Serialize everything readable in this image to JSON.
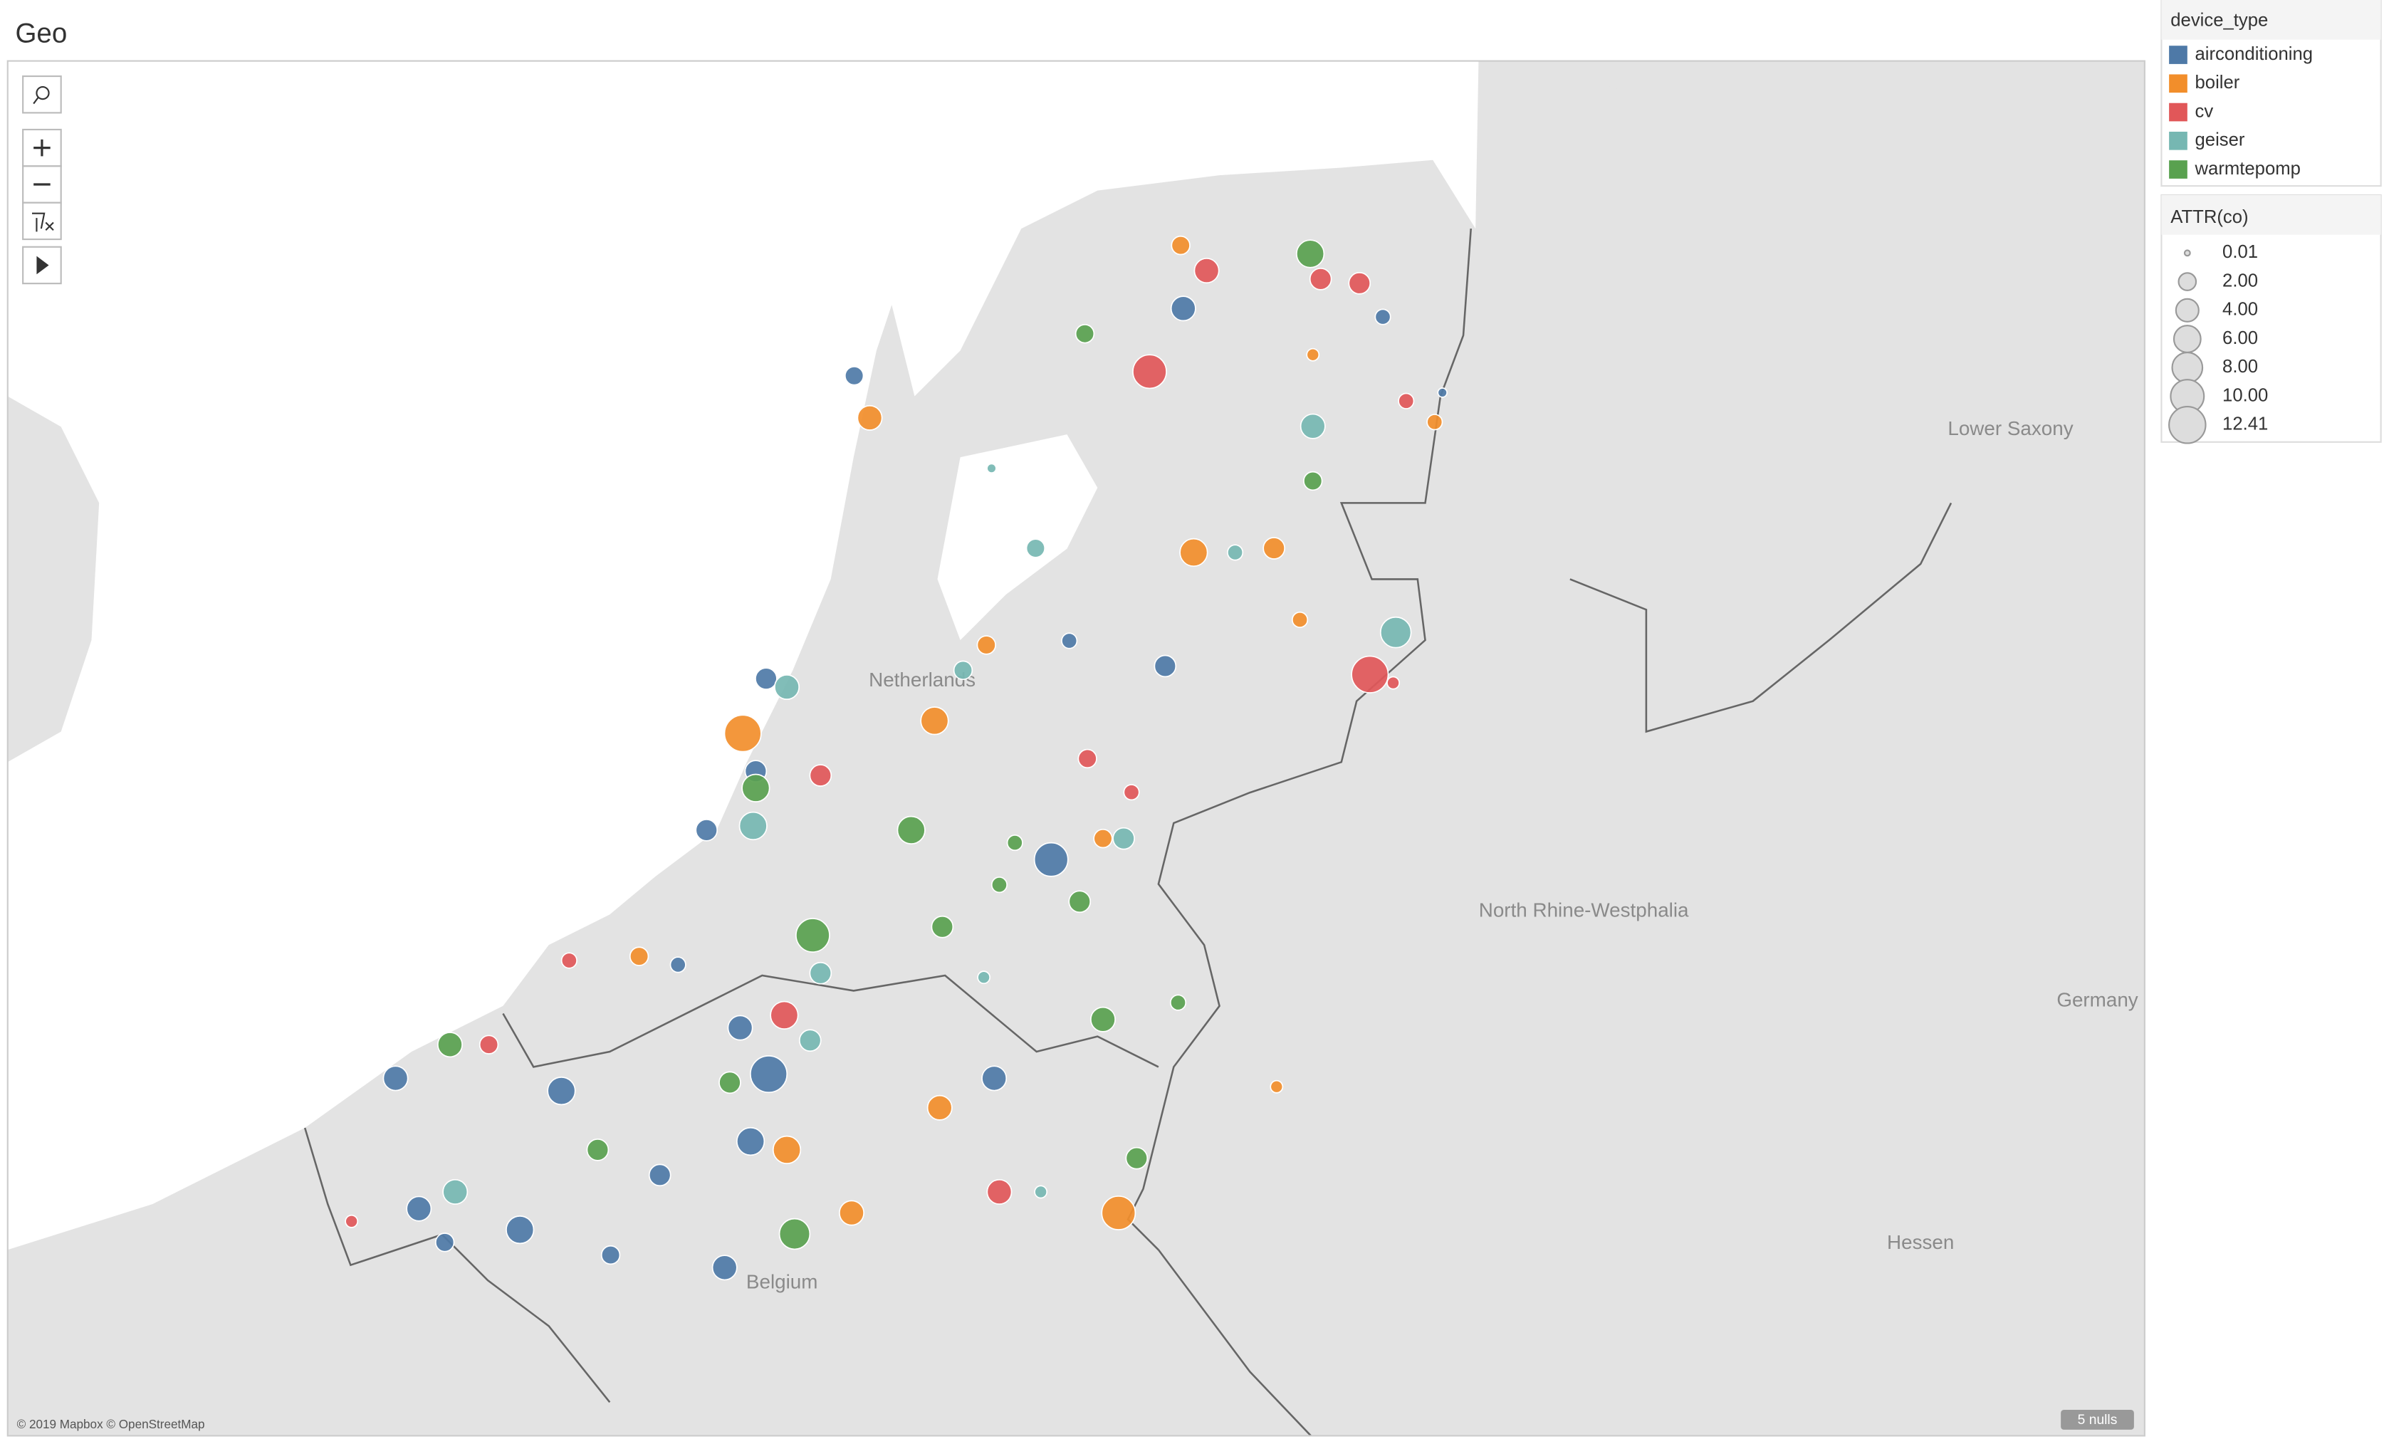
{
  "chart_data": {
    "type": "bubble_map",
    "title": "Geo",
    "color_legend_title": "device_type",
    "size_legend_title": "ATTR(co)",
    "size_ticks": [
      0.01,
      {
        "value": 2,
        "label": "2.00"
      },
      {
        "value": 4,
        "label": "4.00"
      },
      {
        "value": 6,
        "label": "6.00"
      },
      {
        "value": 8,
        "label": "8.00"
      },
      {
        "value": 10,
        "label": "10.00"
      },
      12.41
    ],
    "place_labels": [
      "Lower Saxony",
      "Netherlands",
      "North Rhine-Westphalia",
      "Belgium",
      "Hessen",
      "Germany"
    ],
    "attribution": "© 2019 Mapbox © OpenStreetMap",
    "nulls_label": "5 nulls",
    "series": [
      {
        "name": "airconditioning",
        "color": "#4e79a7",
        "lon": [
          5.94,
          6.71,
          4.67,
          6.94,
          5.5,
          5.87,
          4.33,
          4.29,
          4.1,
          5.43,
          4.23,
          4.34,
          4.27,
          3.54,
          2.9,
          3.92,
          2.99,
          3.38,
          3.09,
          3.73,
          4.17,
          5.21,
          3.99
        ],
        "lat": [
          53.06,
          53.04,
          52.9,
          52.86,
          52.27,
          52.21,
          52.18,
          51.96,
          51.82,
          51.75,
          51.35,
          51.24,
          51.08,
          51.2,
          51.23,
          51.0,
          50.92,
          50.87,
          50.84,
          50.81,
          50.78,
          51.23,
          51.5
        ],
        "size": [
          4.76,
          1.38,
          2.28,
          0.25,
          1.38,
          3.4,
          3.4,
          3.4,
          3.4,
          10.16,
          4.76,
          12.41,
          6.33,
          6.33,
          4.76,
          3.4,
          4.76,
          6.33,
          2.28,
          2.28,
          4.76,
          4.76,
          1.38
        ]
      },
      {
        "name": "boiler",
        "color": "#f28e2b",
        "lon": [
          5.93,
          6.44,
          4.73,
          6.91,
          5.98,
          6.29,
          6.39,
          5.18,
          4.98,
          4.24,
          5.63,
          4.41,
          4.66,
          5.0,
          5.69,
          6.3,
          3.84
        ],
        "lat": [
          53.21,
          52.95,
          52.8,
          52.79,
          52.48,
          52.49,
          52.32,
          52.26,
          52.08,
          52.05,
          51.8,
          51.06,
          50.91,
          51.16,
          50.91,
          51.21,
          51.52
        ],
        "size": [
          2.28,
          0.7,
          4.76,
          1.38,
          6.33,
          3.4,
          1.38,
          2.28,
          6.33,
          12.41,
          2.28,
          6.33,
          4.76,
          4.76,
          10.16,
          0.7,
          2.28
        ]
      },
      {
        "name": "cv",
        "color": "#e15759",
        "lon": [
          6.03,
          6.47,
          6.62,
          5.81,
          6.8,
          6.66,
          6.75,
          4.54,
          5.57,
          5.74,
          4.4,
          3.26,
          2.73,
          5.23,
          3.57
        ],
        "lat": [
          53.15,
          53.13,
          53.12,
          52.91,
          52.84,
          52.19,
          52.17,
          51.95,
          51.99,
          51.91,
          51.38,
          51.31,
          50.89,
          50.96,
          51.51
        ],
        "size": [
          4.76,
          3.4,
          3.4,
          10.16,
          1.38,
          12.41,
          0.7,
          3.4,
          2.28,
          1.38,
          6.33,
          2.28,
          0.7,
          4.76,
          1.38
        ]
      },
      {
        "name": "geiser",
        "color": "#76b7b2",
        "lon": [
          6.44,
          5.2,
          5.37,
          6.14,
          6.76,
          4.41,
          5.09,
          4.28,
          5.71,
          4.54,
          4.5,
          3.13,
          5.39,
          5.17
        ],
        "lat": [
          52.78,
          52.68,
          52.49,
          52.48,
          52.29,
          52.16,
          52.2,
          51.83,
          51.8,
          51.48,
          51.32,
          50.96,
          50.96,
          51.47
        ],
        "size": [
          4.76,
          0.25,
          2.28,
          1.38,
          8.13,
          4.76,
          2.28,
          6.33,
          3.4,
          3.4,
          3.4,
          4.76,
          0.7,
          0.7
        ]
      },
      {
        "name": "warmtepomp",
        "color": "#59a14f",
        "lon": [
          6.43,
          5.56,
          6.44,
          4.29,
          4.89,
          5.54,
          4.51,
          5.01,
          4.19,
          3.11,
          3.68,
          4.44,
          5.63,
          5.76,
          5.92,
          5.23,
          5.29
        ],
        "lat": [
          53.19,
          53.0,
          52.65,
          51.92,
          51.82,
          51.65,
          51.57,
          51.59,
          51.22,
          51.31,
          51.06,
          50.86,
          51.37,
          51.04,
          51.41,
          51.69,
          51.79
        ],
        "size": [
          6.33,
          2.28,
          2.28,
          6.33,
          6.33,
          3.4,
          10.16,
          3.4,
          3.4,
          4.76,
          3.4,
          8.13,
          4.76,
          3.4,
          1.38,
          1.38,
          1.38
        ]
      }
    ]
  }
}
